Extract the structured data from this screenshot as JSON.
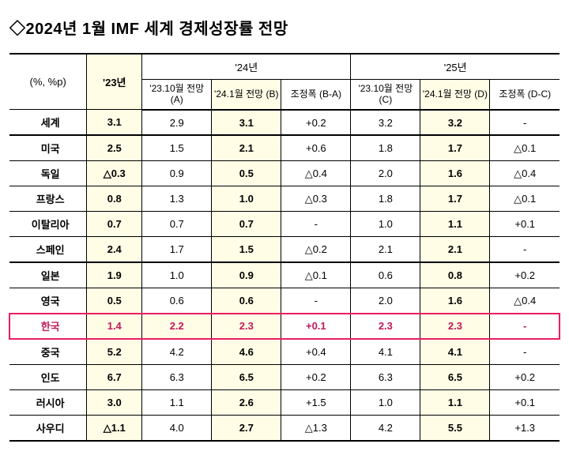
{
  "title": "◇2024년 1월 IMF 세계 경제성장률 전망",
  "header": {
    "unit": "(%, %p)",
    "y23": "'23년",
    "y24": "'24년",
    "y25": "'25년",
    "sub": {
      "a": "'23.10월\n전망 (A)",
      "b": "'24.1월\n전망 (B)",
      "ba": "조정폭\n(B-A)",
      "c": "'23.10월\n전망 (C)",
      "d": "'24.1월\n전망 (D)",
      "dc": "조정폭\n(D-C)"
    }
  },
  "rows": [
    {
      "label": "세계",
      "y23": "3.1",
      "a": "2.9",
      "b": "3.1",
      "ba": "+0.2",
      "c": "3.2",
      "d": "3.2",
      "dc": "-",
      "sep": false
    },
    {
      "label": "미국",
      "y23": "2.5",
      "a": "1.5",
      "b": "2.1",
      "ba": "+0.6",
      "c": "1.8",
      "d": "1.7",
      "dc": "△0.1",
      "sep": true
    },
    {
      "label": "독일",
      "y23": "△0.3",
      "a": "0.9",
      "b": "0.5",
      "ba": "△0.4",
      "c": "2.0",
      "d": "1.6",
      "dc": "△0.4",
      "sep": false
    },
    {
      "label": "프랑스",
      "y23": "0.8",
      "a": "1.3",
      "b": "1.0",
      "ba": "△0.3",
      "c": "1.8",
      "d": "1.7",
      "dc": "△0.1",
      "sep": false
    },
    {
      "label": "이탈리아",
      "y23": "0.7",
      "a": "0.7",
      "b": "0.7",
      "ba": "-",
      "c": "1.0",
      "d": "1.1",
      "dc": "+0.1",
      "sep": false
    },
    {
      "label": "스페인",
      "y23": "2.4",
      "a": "1.7",
      "b": "1.5",
      "ba": "△0.2",
      "c": "2.1",
      "d": "2.1",
      "dc": "-",
      "sep": false
    },
    {
      "label": "일본",
      "y23": "1.9",
      "a": "1.0",
      "b": "0.9",
      "ba": "△0.1",
      "c": "0.6",
      "d": "0.8",
      "dc": "+0.2",
      "sep": true
    },
    {
      "label": "영국",
      "y23": "0.5",
      "a": "0.6",
      "b": "0.6",
      "ba": "-",
      "c": "2.0",
      "d": "1.6",
      "dc": "△0.4",
      "sep": false
    },
    {
      "label": "한국",
      "y23": "1.4",
      "a": "2.2",
      "b": "2.3",
      "ba": "+0.1",
      "c": "2.3",
      "d": "2.3",
      "dc": "-",
      "sep": false,
      "korea": true
    },
    {
      "label": "중국",
      "y23": "5.2",
      "a": "4.2",
      "b": "4.6",
      "ba": "+0.4",
      "c": "4.1",
      "d": "4.1",
      "dc": "-",
      "sep": true
    },
    {
      "label": "인도",
      "y23": "6.7",
      "a": "6.3",
      "b": "6.5",
      "ba": "+0.2",
      "c": "6.3",
      "d": "6.5",
      "dc": "+0.2",
      "sep": false
    },
    {
      "label": "러시아",
      "y23": "3.0",
      "a": "1.1",
      "b": "2.6",
      "ba": "+1.5",
      "c": "1.0",
      "d": "1.1",
      "dc": "+0.1",
      "sep": false
    },
    {
      "label": "사우디",
      "y23": "△1.1",
      "a": "4.0",
      "b": "2.7",
      "ba": "△1.3",
      "c": "4.2",
      "d": "5.5",
      "dc": "+1.3",
      "sep": false
    }
  ],
  "columns": {
    "widths": [
      "14%",
      "10%",
      "12.6%",
      "12.6%",
      "12.6%",
      "12.6%",
      "12.6%",
      "12.6%"
    ]
  },
  "colors": {
    "highlight": "#fffde6",
    "korea_border": "#e91e63",
    "korea_text": "#c2185b"
  }
}
